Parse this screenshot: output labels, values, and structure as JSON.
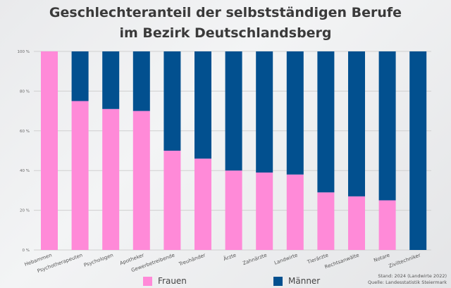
{
  "chart_data": {
    "type": "bar",
    "stacked": true,
    "title_line1": "Geschlechteranteil der selbstständigen Berufe",
    "title_line2": "im Bezirk Deutschlandsberg",
    "categories": [
      "Hebammen",
      "Psychotherapeuten",
      "Psychologen",
      "Apotheker",
      "Gewerbetreibende",
      "Treuhänder",
      "Ärzte",
      "Zahnärzte",
      "Landwirte",
      "Tierärzte",
      "Rechtsanwälte",
      "Notare",
      "Ziviltechniker"
    ],
    "series": [
      {
        "name": "Frauen",
        "color": "#ff8ad8",
        "values": [
          100,
          75,
          71,
          70,
          50,
          46,
          40,
          39,
          38,
          29,
          27,
          25,
          0
        ]
      },
      {
        "name": "Männer",
        "color": "#02508f",
        "values": [
          0,
          25,
          29,
          30,
          50,
          54,
          60,
          61,
          62,
          71,
          73,
          75,
          100
        ]
      }
    ],
    "ylim": [
      0,
      100
    ],
    "yticks": [
      "0 %",
      "20 %",
      "40 %",
      "60 %",
      "80 %",
      "100 %"
    ],
    "grid": true,
    "legend_placement": "bottom",
    "notes": [
      "Stand: 2024 (Landwirte 2022)",
      "Quelle: Landesstatistik Steiermark"
    ]
  }
}
